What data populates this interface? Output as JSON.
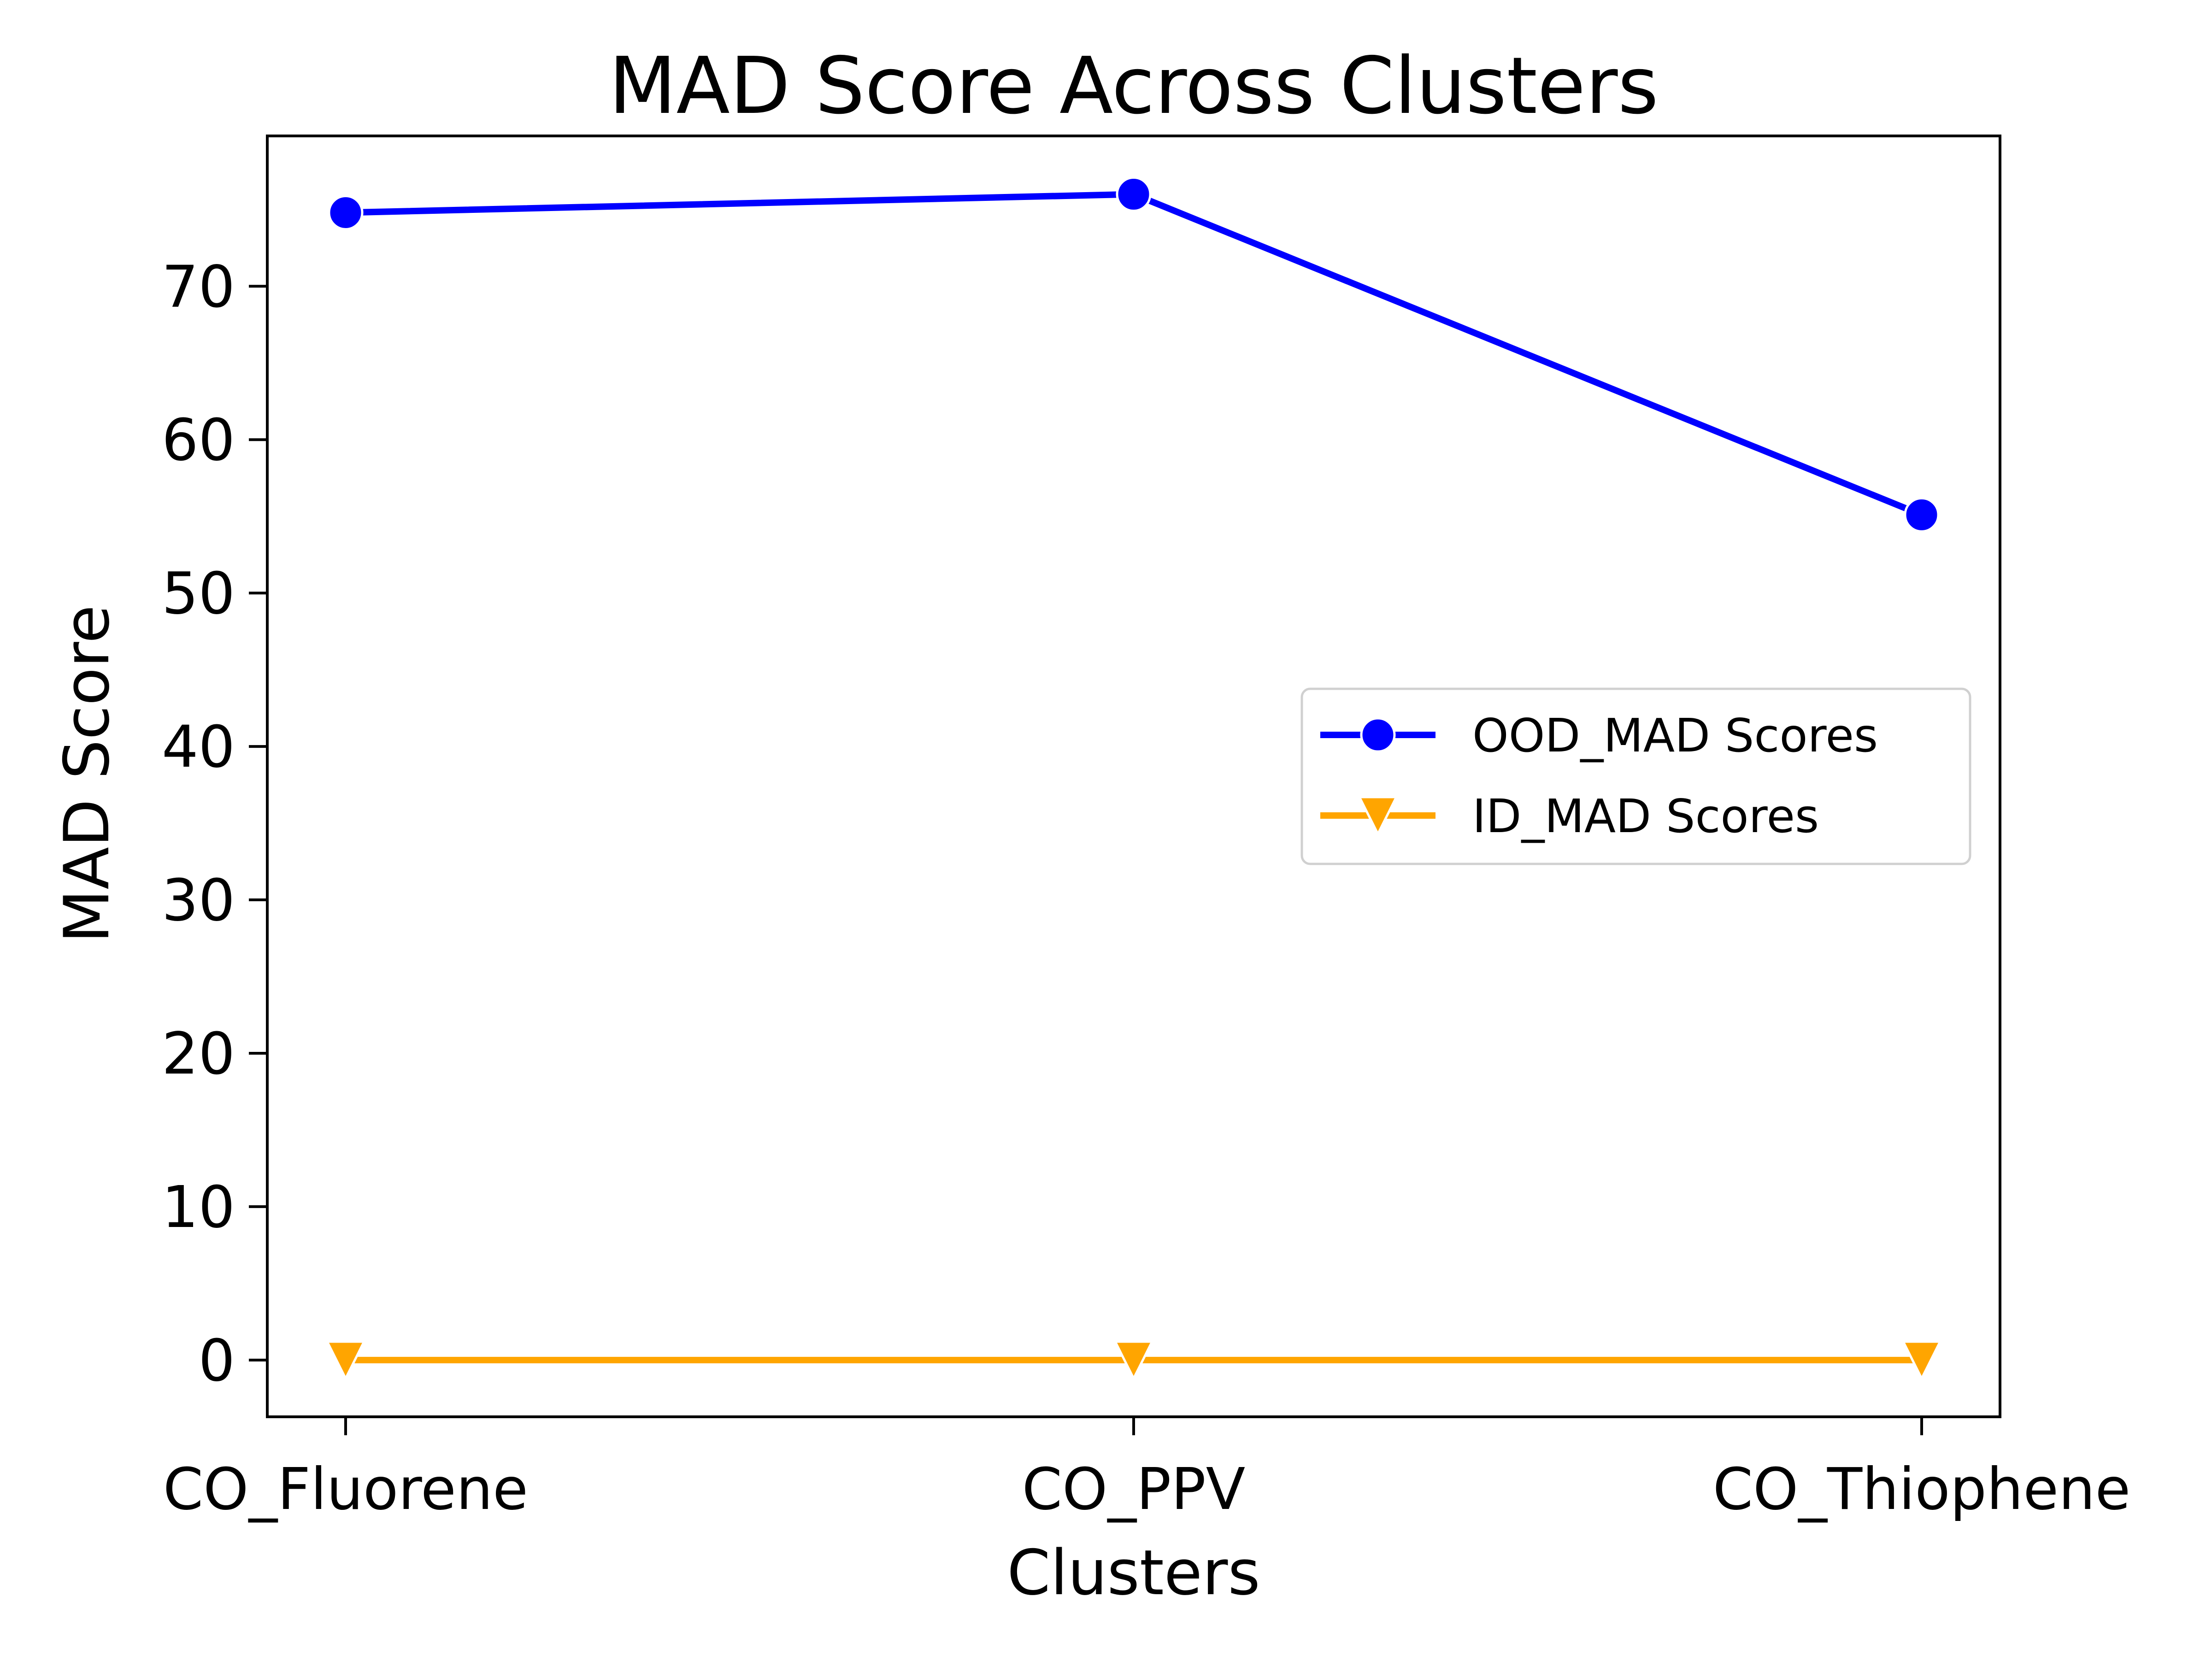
{
  "chart_data": {
    "type": "line",
    "title": "MAD Score Across Clusters",
    "xlabel": "Clusters",
    "ylabel": "MAD Score",
    "categories": [
      "CO_Fluorene",
      "CO_PPV",
      "CO_Thiophene"
    ],
    "ylim": [
      -3.7,
      79.8
    ],
    "yticks": [
      0,
      10,
      20,
      30,
      40,
      50,
      60,
      70
    ],
    "grid": false,
    "legend_position": "center-right",
    "series": [
      {
        "name": "OOD_MAD Scores",
        "values": [
          74.8,
          76.0,
          55.1
        ],
        "color": "#0000ff",
        "marker": "circle"
      },
      {
        "name": "ID_MAD Scores",
        "values": [
          0.0,
          0.0,
          0.0
        ],
        "color": "#ffa500",
        "marker": "triangle-down"
      }
    ]
  }
}
